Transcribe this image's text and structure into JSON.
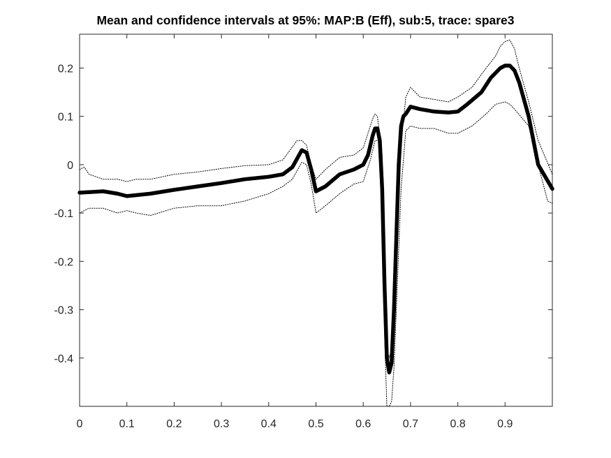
{
  "chart_data": {
    "type": "line",
    "title": "Mean and confidence intervals at 95%: MAP:B (Eff), sub:5, trace: spare3",
    "xlabel": "",
    "ylabel": "",
    "xlim": [
      0,
      1.0
    ],
    "ylim": [
      -0.5,
      0.27
    ],
    "grid": false,
    "legend": "none",
    "x_ticks": [
      "0",
      "0.1",
      "0.2",
      "0.3",
      "0.4",
      "0.5",
      "0.6",
      "0.7",
      "0.8",
      "0.9"
    ],
    "x_tick_values": [
      0,
      0.1,
      0.2,
      0.3,
      0.4,
      0.5,
      0.6,
      0.7,
      0.8,
      0.9
    ],
    "y_ticks": [
      "0.2",
      "0.1",
      "0",
      "-0.1",
      "-0.2",
      "-0.3",
      "-0.4"
    ],
    "y_tick_values": [
      0.2,
      0.1,
      0,
      -0.1,
      -0.2,
      -0.3,
      -0.4
    ],
    "series": [
      {
        "role": "mean",
        "style": "thick-solid",
        "color": "#000000",
        "x": [
          0,
          0.05,
          0.08,
          0.1,
          0.12,
          0.15,
          0.2,
          0.25,
          0.3,
          0.35,
          0.4,
          0.43,
          0.45,
          0.47,
          0.48,
          0.49,
          0.5,
          0.52,
          0.55,
          0.58,
          0.6,
          0.61,
          0.62,
          0.625,
          0.63,
          0.635,
          0.64,
          0.645,
          0.65,
          0.655,
          0.66,
          0.665,
          0.67,
          0.675,
          0.68,
          0.685,
          0.69,
          0.7,
          0.72,
          0.75,
          0.78,
          0.8,
          0.82,
          0.85,
          0.87,
          0.89,
          0.9,
          0.91,
          0.92,
          0.93,
          0.95,
          0.97,
          1.0
        ],
        "y": [
          -0.058,
          -0.055,
          -0.06,
          -0.065,
          -0.063,
          -0.06,
          -0.052,
          -0.045,
          -0.038,
          -0.03,
          -0.025,
          -0.02,
          -0.005,
          0.03,
          0.025,
          -0.01,
          -0.055,
          -0.045,
          -0.02,
          -0.01,
          0.0,
          0.02,
          0.06,
          0.075,
          0.075,
          0.05,
          -0.05,
          -0.25,
          -0.4,
          -0.43,
          -0.41,
          -0.3,
          -0.15,
          0.0,
          0.08,
          0.1,
          0.105,
          0.12,
          0.115,
          0.11,
          0.108,
          0.11,
          0.125,
          0.15,
          0.18,
          0.2,
          0.205,
          0.205,
          0.195,
          0.17,
          0.1,
          0.0,
          -0.05
        ]
      },
      {
        "role": "upper-95",
        "style": "dotted",
        "color": "#000000",
        "x": [
          0,
          0.01,
          0.02,
          0.05,
          0.08,
          0.1,
          0.12,
          0.15,
          0.2,
          0.25,
          0.3,
          0.35,
          0.4,
          0.43,
          0.46,
          0.47,
          0.48,
          0.49,
          0.5,
          0.52,
          0.55,
          0.58,
          0.6,
          0.62,
          0.625,
          0.63,
          0.64,
          0.65,
          0.655,
          0.66,
          0.67,
          0.68,
          0.69,
          0.7,
          0.72,
          0.75,
          0.78,
          0.8,
          0.83,
          0.86,
          0.88,
          0.89,
          0.9,
          0.91,
          0.92,
          0.93,
          0.95,
          0.97,
          1.0
        ],
        "y": [
          -0.01,
          -0.005,
          -0.02,
          -0.03,
          -0.03,
          -0.035,
          -0.03,
          -0.03,
          -0.02,
          -0.015,
          -0.008,
          -0.002,
          0.0,
          0.01,
          0.05,
          0.05,
          0.04,
          0.0,
          -0.03,
          -0.01,
          0.015,
          0.02,
          0.035,
          0.095,
          0.105,
          0.1,
          0.02,
          -0.38,
          -0.4,
          -0.38,
          -0.2,
          0.04,
          0.14,
          0.16,
          0.14,
          0.135,
          0.13,
          0.14,
          0.16,
          0.2,
          0.225,
          0.245,
          0.255,
          0.258,
          0.24,
          0.2,
          0.13,
          0.05,
          -0.02
        ]
      },
      {
        "role": "lower-95",
        "style": "dotted",
        "color": "#000000",
        "x": [
          0,
          0.02,
          0.05,
          0.08,
          0.1,
          0.12,
          0.15,
          0.2,
          0.25,
          0.3,
          0.35,
          0.4,
          0.43,
          0.45,
          0.47,
          0.48,
          0.49,
          0.5,
          0.52,
          0.55,
          0.58,
          0.6,
          0.615,
          0.625,
          0.635,
          0.64,
          0.645,
          0.65,
          0.655,
          0.66,
          0.665,
          0.67,
          0.68,
          0.69,
          0.7,
          0.72,
          0.75,
          0.78,
          0.8,
          0.83,
          0.86,
          0.88,
          0.9,
          0.91,
          0.92,
          0.95,
          0.97,
          0.99,
          1.0
        ],
        "y": [
          -0.1,
          -0.09,
          -0.09,
          -0.1,
          -0.095,
          -0.1,
          -0.105,
          -0.09,
          -0.085,
          -0.085,
          -0.075,
          -0.06,
          -0.045,
          -0.03,
          0.005,
          0.0,
          -0.04,
          -0.1,
          -0.085,
          -0.06,
          -0.04,
          -0.035,
          0.01,
          0.05,
          0.05,
          -0.1,
          -0.35,
          -0.5,
          -0.5,
          -0.49,
          -0.42,
          -0.3,
          -0.05,
          0.07,
          0.08,
          0.075,
          0.075,
          0.065,
          0.065,
          0.08,
          0.105,
          0.125,
          0.13,
          0.125,
          0.115,
          0.08,
          0.0,
          -0.075,
          -0.08
        ]
      }
    ]
  }
}
